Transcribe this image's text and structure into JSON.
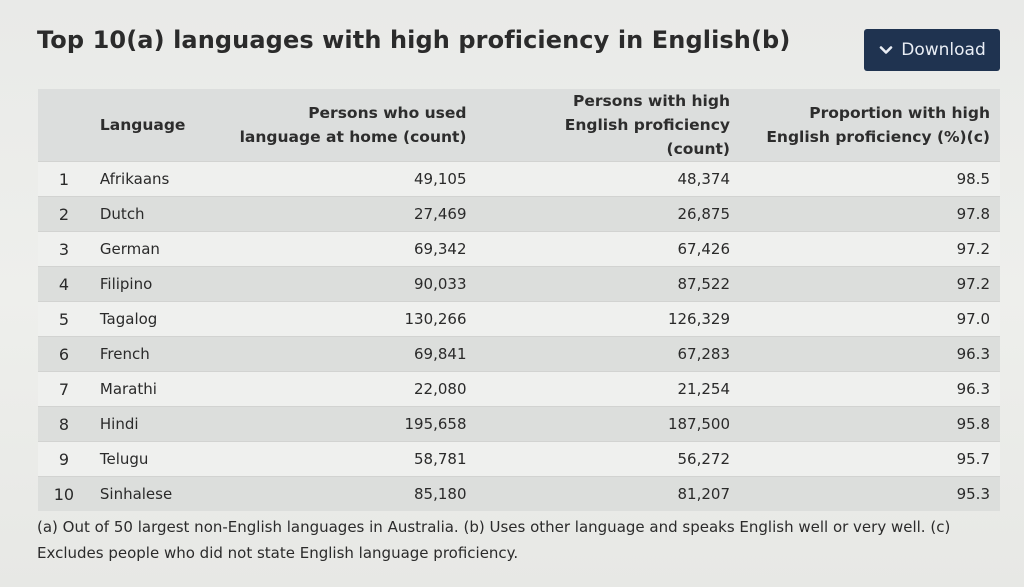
{
  "page": {
    "title": "Top 10(a) languages with high proficiency in English(b)",
    "download_label": "Download",
    "footnote": "(a) Out of 50 largest non-English languages in Australia. (b) Uses other language and speaks English well or very well. (c) Excludes people who did not state English language proficiency."
  },
  "table": {
    "headers": {
      "rank": "",
      "language": "Language",
      "used_at_home": "Persons who used language at home (count)",
      "high_proficiency": "Persons with high English proficiency (count)",
      "proportion": "Proportion with high English proficiency (%)(c)"
    },
    "rows": [
      {
        "rank": "1",
        "language": "Afrikaans",
        "used_at_home": "49,105",
        "high_proficiency": "48,374",
        "proportion": "98.5"
      },
      {
        "rank": "2",
        "language": "Dutch",
        "used_at_home": "27,469",
        "high_proficiency": "26,875",
        "proportion": "97.8"
      },
      {
        "rank": "3",
        "language": "German",
        "used_at_home": "69,342",
        "high_proficiency": "67,426",
        "proportion": "97.2"
      },
      {
        "rank": "4",
        "language": "Filipino",
        "used_at_home": "90,033",
        "high_proficiency": "87,522",
        "proportion": "97.2"
      },
      {
        "rank": "5",
        "language": "Tagalog",
        "used_at_home": "130,266",
        "high_proficiency": "126,329",
        "proportion": "97.0"
      },
      {
        "rank": "6",
        "language": "French",
        "used_at_home": "69,841",
        "high_proficiency": "67,283",
        "proportion": "96.3"
      },
      {
        "rank": "7",
        "language": "Marathi",
        "used_at_home": "22,080",
        "high_proficiency": "21,254",
        "proportion": "96.3"
      },
      {
        "rank": "8",
        "language": "Hindi",
        "used_at_home": "195,658",
        "high_proficiency": "187,500",
        "proportion": "95.8"
      },
      {
        "rank": "9",
        "language": "Telugu",
        "used_at_home": "58,781",
        "high_proficiency": "56,272",
        "proportion": "95.7"
      },
      {
        "rank": "10",
        "language": "Sinhalese",
        "used_at_home": "85,180",
        "high_proficiency": "81,207",
        "proportion": "95.3"
      }
    ]
  },
  "icons": {
    "download": "chevron-down-icon"
  },
  "colors": {
    "button_bg": "#1f3350",
    "header_bg": "#dcdedd",
    "row_light": "#eff0ee",
    "row_dark": "#dcdedc"
  }
}
